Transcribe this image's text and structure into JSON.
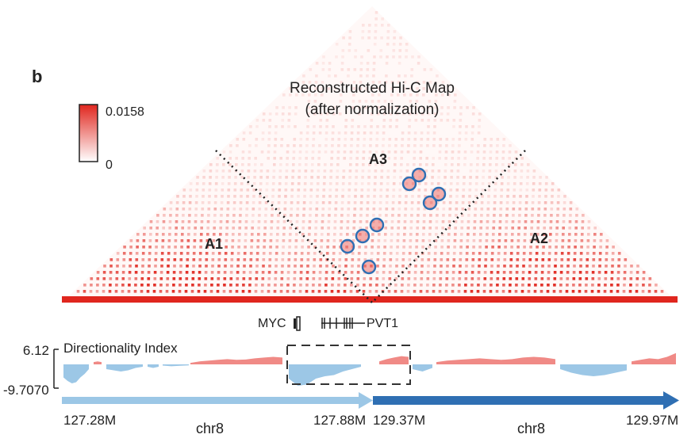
{
  "panel_label": "b",
  "chart_data": {
    "type": "heatmap",
    "title_line1": "Reconstructed Hi-C Map",
    "title_line2": "(after normalization)",
    "colorbar": {
      "max_label": "0.0158",
      "min_label": "0",
      "max_value": 0.0158,
      "min_value": 0,
      "low_color": "#ffffff",
      "high_color": "#e0261e"
    },
    "regions": [
      {
        "label": "A1"
      },
      {
        "label": "A2"
      },
      {
        "label": "A3"
      }
    ],
    "loops_highlighted": 9,
    "genes": [
      {
        "label": "MYC"
      },
      {
        "label": "PVT1"
      }
    ],
    "directionality_index": {
      "label": "Directionality Index",
      "ymax_label": "6.12",
      "ymin_label": "-9.7070",
      "ylim": [
        -9.707,
        6.12
      ],
      "positive_color": "#f08a86",
      "negative_color": "#9cc7e6"
    },
    "axis_segments": [
      {
        "chrom": "chr8",
        "start_label": "127.28M",
        "end_label": "127.88M",
        "start": 127.28,
        "end": 127.88,
        "color": "#9cc7e6"
      },
      {
        "chrom": "chr8",
        "start_label": "129.37M",
        "end_label": "129.97M",
        "start": 129.37,
        "end": 129.97,
        "color": "#2f6fb3"
      }
    ]
  }
}
